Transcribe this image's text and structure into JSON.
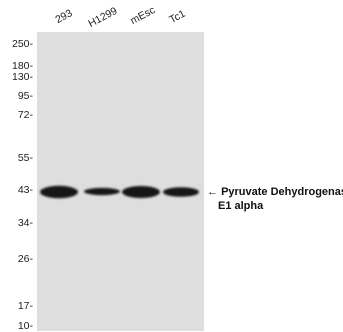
{
  "lanes": [
    "293",
    "H1299",
    "mEsc",
    "Tc1"
  ],
  "markers": [
    "250-",
    "180-",
    "130-",
    "95-",
    "72-",
    "55-",
    "43-",
    "34-",
    "26-",
    "17-",
    "10-"
  ],
  "annotation": {
    "arrow": "←",
    "line1": "Pyruvate Dehydrogenase",
    "line2": "E1 alpha"
  }
}
